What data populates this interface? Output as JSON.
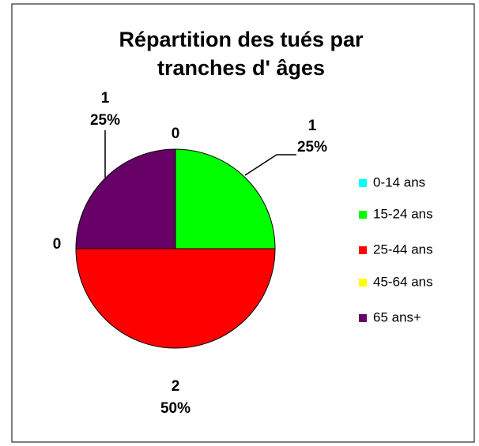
{
  "chart_data": {
    "type": "pie",
    "title": [
      "Répartition des tués par",
      "tranches d' âges"
    ],
    "categories": [
      "0-14 ans",
      "15-24 ans",
      "25-44 ans",
      "45-64 ans",
      "65 ans+"
    ],
    "values": [
      0,
      1,
      2,
      0,
      1
    ],
    "percent_labels": [
      null,
      "25%",
      "50%",
      null,
      "25%"
    ],
    "colors": [
      "#00ffff",
      "#00ff00",
      "#ff0000",
      "#ffff00",
      "#660066"
    ],
    "legend": "right"
  }
}
